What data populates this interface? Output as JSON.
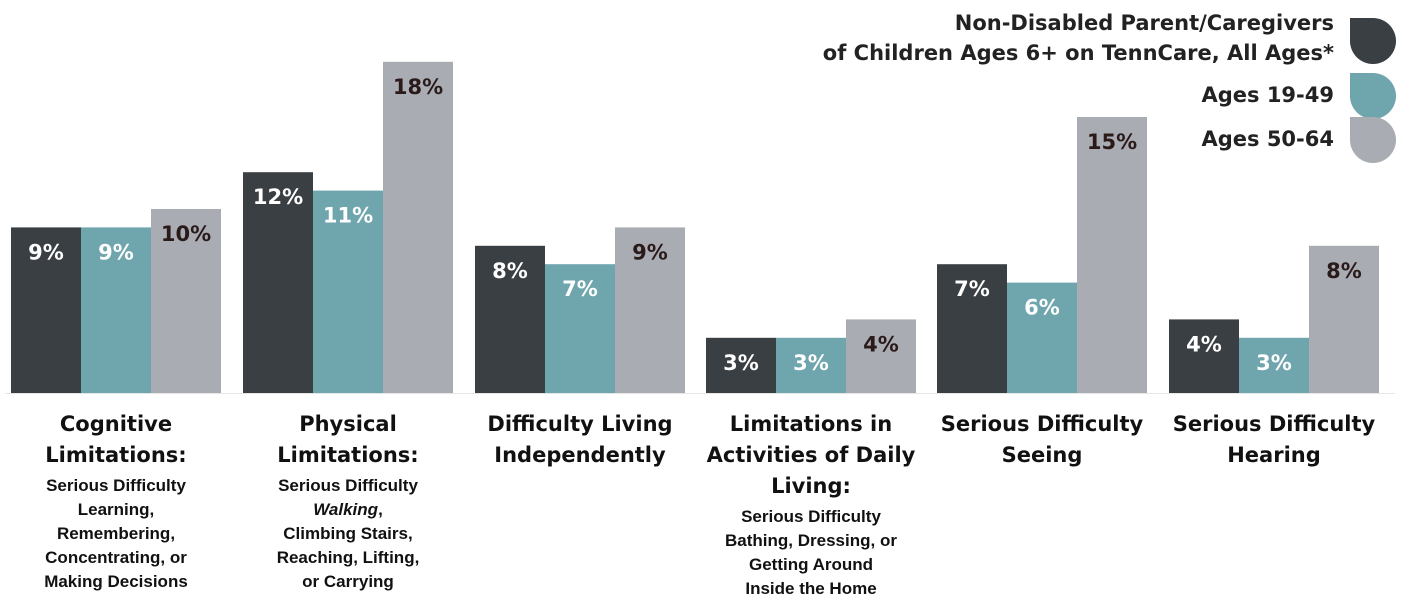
{
  "chart_data": {
    "type": "bar",
    "categories": [
      {
        "title": "Cognitive Limitations:",
        "sub": [
          "Serious Difficulty",
          "Learning,",
          "Remembering,",
          "Concentrating, or",
          "Making Decisions"
        ]
      },
      {
        "title": "Physical Limitations:",
        "sub": [
          "Serious Difficulty",
          "Walking,",
          "Climbing Stairs,",
          "Reaching, Lifting,",
          "or Carrying"
        ]
      },
      {
        "title": "Difficulty Living Independently",
        "sub": []
      },
      {
        "title": "Limitations in Activities of Daily Living:",
        "sub": [
          "Serious Difficulty",
          "Bathing, Dressing, or",
          "Getting Around",
          "Inside the Home"
        ]
      },
      {
        "title": "Serious Difficulty Seeing",
        "sub": []
      },
      {
        "title": "Serious Difficulty Hearing",
        "sub": []
      }
    ],
    "series": [
      {
        "name": "Non-Disabled Parent/Caregivers of Children Ages 6+ on TennCare, All Ages*",
        "color": "#3a3f43",
        "values": [
          9,
          12,
          8,
          3,
          7,
          4
        ],
        "labels": [
          "9%",
          "12%",
          "8%",
          "3%",
          "7%",
          "4%"
        ]
      },
      {
        "name": "Ages 19-49",
        "color": "#6fa5ad",
        "values": [
          9,
          11,
          7,
          3,
          6,
          3
        ],
        "labels": [
          "9%",
          "11%",
          "7%",
          "3%",
          "6%",
          "3%"
        ]
      },
      {
        "name": "Ages 50-64",
        "color": "#a9adb3",
        "values": [
          10,
          18,
          9,
          4,
          15,
          8
        ],
        "labels": [
          "10%",
          "18%",
          "9%",
          "4%",
          "15%",
          "8%"
        ]
      }
    ],
    "legend": {
      "position": "top-right"
    },
    "ylim": [
      0,
      19
    ],
    "grid": false
  }
}
